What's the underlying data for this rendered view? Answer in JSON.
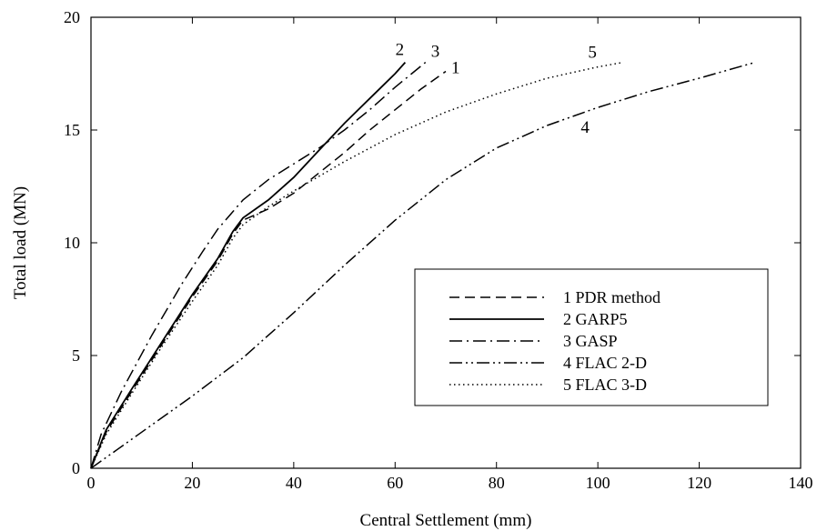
{
  "chart_data": {
    "type": "line",
    "title": "",
    "xlabel": "Central Settlement (mm)",
    "ylabel": "Total load (MN)",
    "xlim": [
      0,
      140
    ],
    "ylim": [
      0,
      20
    ],
    "xticks": [
      0,
      20,
      40,
      60,
      80,
      100,
      120,
      140
    ],
    "yticks": [
      0,
      5,
      10,
      15,
      20
    ],
    "grid": false,
    "legend_position": "bottom-right",
    "series": [
      {
        "id": "1",
        "name": "1 PDR method",
        "label": "1",
        "dash": "dashed",
        "points": [
          [
            0,
            0
          ],
          [
            3,
            1.6
          ],
          [
            8,
            3.4
          ],
          [
            14,
            5.5
          ],
          [
            20,
            7.6
          ],
          [
            25,
            9.2
          ],
          [
            28,
            10.4
          ],
          [
            30,
            11.0
          ],
          [
            35,
            11.5
          ],
          [
            40,
            12.2
          ],
          [
            45,
            13.1
          ],
          [
            50,
            14.0
          ],
          [
            55,
            15.0
          ],
          [
            60,
            15.9
          ],
          [
            65,
            16.8
          ],
          [
            70,
            17.6
          ]
        ]
      },
      {
        "id": "2",
        "name": "2 GARP5",
        "label": "2",
        "dash": "solid",
        "points": [
          [
            0,
            0
          ],
          [
            3,
            1.7
          ],
          [
            8,
            3.5
          ],
          [
            14,
            5.6
          ],
          [
            20,
            7.7
          ],
          [
            25,
            9.3
          ],
          [
            28,
            10.5
          ],
          [
            30,
            11.1
          ],
          [
            35,
            11.9
          ],
          [
            40,
            12.9
          ],
          [
            45,
            14.1
          ],
          [
            50,
            15.3
          ],
          [
            55,
            16.4
          ],
          [
            60,
            17.5
          ],
          [
            62,
            18.0
          ]
        ]
      },
      {
        "id": "3",
        "name": "3 GASP",
        "label": "3",
        "dash": "dashdot",
        "points": [
          [
            0,
            0
          ],
          [
            2,
            1.5
          ],
          [
            6,
            3.4
          ],
          [
            12,
            5.9
          ],
          [
            18,
            8.2
          ],
          [
            22,
            9.6
          ],
          [
            25,
            10.6
          ],
          [
            30,
            11.9
          ],
          [
            35,
            12.8
          ],
          [
            40,
            13.5
          ],
          [
            45,
            14.2
          ],
          [
            50,
            15.0
          ],
          [
            55,
            15.9
          ],
          [
            60,
            16.9
          ],
          [
            66,
            18.0
          ]
        ]
      },
      {
        "id": "4",
        "name": "4 FLAC 2-D",
        "label": "4",
        "dash": "dashdotdot",
        "points": [
          [
            0,
            0
          ],
          [
            10,
            1.6
          ],
          [
            20,
            3.2
          ],
          [
            30,
            4.9
          ],
          [
            40,
            6.9
          ],
          [
            50,
            9.0
          ],
          [
            60,
            11.0
          ],
          [
            70,
            12.8
          ],
          [
            80,
            14.2
          ],
          [
            90,
            15.2
          ],
          [
            100,
            16.0
          ],
          [
            110,
            16.7
          ],
          [
            120,
            17.3
          ],
          [
            131,
            18.0
          ]
        ]
      },
      {
        "id": "5",
        "name": "5 FLAC 3-D",
        "label": "5",
        "dash": "dotted",
        "points": [
          [
            0,
            0
          ],
          [
            3,
            1.5
          ],
          [
            8,
            3.3
          ],
          [
            14,
            5.4
          ],
          [
            20,
            7.4
          ],
          [
            25,
            9.0
          ],
          [
            28,
            10.2
          ],
          [
            30,
            10.8
          ],
          [
            35,
            11.6
          ],
          [
            40,
            12.3
          ],
          [
            50,
            13.6
          ],
          [
            60,
            14.8
          ],
          [
            70,
            15.8
          ],
          [
            80,
            16.6
          ],
          [
            90,
            17.3
          ],
          [
            100,
            17.8
          ],
          [
            105,
            18.0
          ]
        ]
      }
    ]
  }
}
